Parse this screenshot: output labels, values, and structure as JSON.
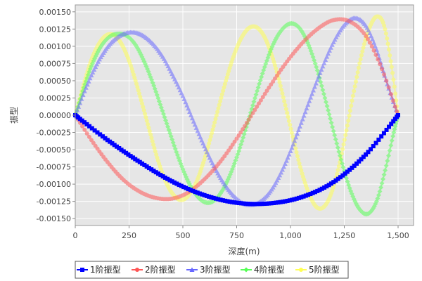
{
  "chart_data": {
    "type": "line",
    "xlabel": "深度(m)",
    "ylabel": "振型",
    "xlim": [
      0,
      1500
    ],
    "ylim": [
      -0.0016,
      0.0016
    ],
    "x_ticks": [
      "0",
      "250",
      "500",
      "750",
      "1,000",
      "1,250",
      "1,500"
    ],
    "y_ticks": [
      "-0.00150",
      "-0.00125",
      "-0.00100",
      "-0.00075",
      "-0.00050",
      "-0.00025",
      "0.00000",
      "0.00025",
      "0.00050",
      "0.00075",
      "0.00100",
      "0.00125",
      "0.00150"
    ],
    "grid": true,
    "legend_position": "bottom",
    "series": [
      {
        "name": "1阶振型",
        "color": "#0000ff",
        "marker": "square",
        "x": [
          0,
          150,
          300,
          450,
          600,
          750,
          900,
          1050,
          1200,
          1350,
          1500
        ],
        "y": [
          0,
          -0.00036,
          -0.00068,
          -0.00096,
          -0.00116,
          -0.00127,
          -0.00128,
          -0.00119,
          -0.00097,
          -0.00057,
          0
        ]
      },
      {
        "name": "2阶振型",
        "color": "#ff5555",
        "marker": "circle",
        "x": [
          0,
          75,
          150,
          225,
          300,
          375,
          450,
          525,
          600,
          675,
          750,
          825,
          900,
          975,
          1050,
          1125,
          1200,
          1275,
          1350,
          1425,
          1500
        ],
        "y": [
          0,
          -0.00036,
          -0.00068,
          -0.00094,
          -0.00111,
          -0.0012,
          -0.00121,
          -0.00112,
          -0.00093,
          -0.00067,
          -0.00034,
          3e-05,
          0.0004,
          0.00074,
          0.00103,
          0.00125,
          0.00138,
          0.00136,
          0.00115,
          0.00067,
          0
        ]
      },
      {
        "name": "3阶振型",
        "color": "#6666ff",
        "marker": "triangle",
        "x": [
          0,
          50,
          100,
          150,
          200,
          250,
          300,
          350,
          400,
          450,
          500,
          550,
          600,
          650,
          700,
          750,
          800,
          850,
          900,
          950,
          1000,
          1050,
          1100,
          1150,
          1200,
          1250,
          1300,
          1350,
          1400,
          1450,
          1500
        ],
        "y": [
          0,
          0.0004,
          0.00074,
          0.00099,
          0.00114,
          0.0012,
          0.00118,
          0.00107,
          0.00088,
          0.0006,
          0.00028,
          -9e-05,
          -0.00045,
          -0.00077,
          -0.00103,
          -0.00121,
          -0.0013,
          -0.00127,
          -0.00113,
          -0.00087,
          -0.00052,
          -0.00011,
          0.00031,
          0.00071,
          0.00106,
          0.00131,
          0.00141,
          0.0013,
          0.00095,
          0.00045,
          0
        ]
      },
      {
        "name": "4阶振型",
        "color": "#55ff55",
        "marker": "diamond",
        "x": [
          0,
          40,
          80,
          120,
          160,
          200,
          240,
          280,
          320,
          360,
          400,
          440,
          480,
          520,
          560,
          600,
          640,
          680,
          720,
          760,
          800,
          840,
          880,
          920,
          960,
          1000,
          1040,
          1080,
          1120,
          1160,
          1200,
          1240,
          1280,
          1320,
          1360,
          1400,
          1440,
          1480,
          1500
        ],
        "y": [
          0,
          0.0004,
          0.00075,
          0.001,
          0.00114,
          0.00118,
          0.00115,
          0.00102,
          0.00078,
          0.00047,
          0.00011,
          -0.00026,
          -0.00062,
          -0.00093,
          -0.00115,
          -0.00126,
          -0.00125,
          -0.00111,
          -0.00086,
          -0.00052,
          -0.00012,
          0.0003,
          0.0007,
          0.00103,
          0.00124,
          0.00133,
          0.00127,
          0.00105,
          0.0007,
          0.00025,
          -0.00023,
          -0.0007,
          -0.0011,
          -0.00136,
          -0.00143,
          -0.00125,
          -0.0008,
          -0.00025,
          0
        ]
      },
      {
        "name": "5阶振型",
        "color": "#ffff55",
        "marker": "circle",
        "x": [
          0,
          35,
          70,
          105,
          140,
          175,
          210,
          245,
          280,
          315,
          350,
          385,
          420,
          455,
          490,
          525,
          560,
          595,
          630,
          665,
          700,
          735,
          770,
          805,
          840,
          875,
          910,
          945,
          980,
          1015,
          1050,
          1085,
          1120,
          1155,
          1190,
          1225,
          1260,
          1295,
          1330,
          1365,
          1400,
          1435,
          1470,
          1500
        ],
        "y": [
          0,
          0.0004,
          0.00076,
          0.00101,
          0.00115,
          0.00117,
          0.00106,
          0.00083,
          0.0005,
          0.00012,
          -0.00028,
          -0.00066,
          -0.00096,
          -0.00115,
          -0.00123,
          -0.00117,
          -0.00099,
          -0.00069,
          -0.00031,
          0.0001,
          0.0005,
          0.00085,
          0.00111,
          0.00126,
          0.00128,
          0.00116,
          0.0009,
          0.00053,
          9e-05,
          -0.00037,
          -0.0008,
          -0.00113,
          -0.00133,
          -0.00133,
          -0.00113,
          -0.00074,
          -0.00022,
          0.00035,
          0.00087,
          0.00125,
          0.00143,
          0.0013,
          0.0007,
          0
        ]
      }
    ]
  }
}
